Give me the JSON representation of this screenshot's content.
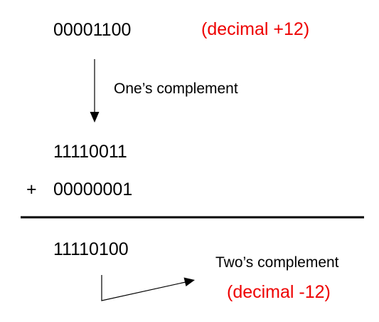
{
  "original": {
    "binary": "00001100",
    "decimal_note": "(decimal +12)"
  },
  "ones_complement": {
    "label": "One’s complement",
    "binary": "11110011"
  },
  "addition": {
    "operator": "+",
    "addend": "00000001"
  },
  "result": {
    "binary": "11110100"
  },
  "twos_complement": {
    "label": "Two’s complement",
    "decimal_note": "(decimal -12)"
  },
  "colors": {
    "text": "#000000",
    "highlight": "#ee0000",
    "background": "#ffffff"
  }
}
